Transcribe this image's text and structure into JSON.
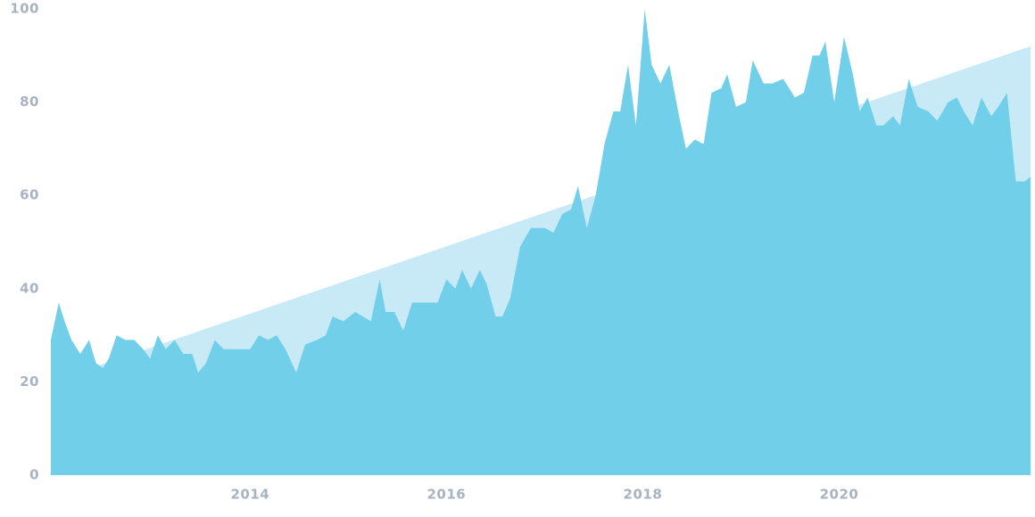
{
  "chart_data": {
    "type": "area",
    "xlim": [
      2011.97,
      2021.95
    ],
    "xticks": [
      2014,
      2016,
      2018,
      2020
    ],
    "ylim": [
      0,
      100
    ],
    "yticks": [
      0,
      20,
      40,
      60,
      80,
      100
    ],
    "grid": false,
    "series": [
      {
        "color": "#72cfea",
        "x": [
          2011.97,
          2012.05,
          2012.11,
          2012.18,
          2012.27,
          2012.36,
          2012.43,
          2012.5,
          2012.56,
          2012.64,
          2012.73,
          2012.82,
          2012.91,
          2012.98,
          2013.06,
          2013.14,
          2013.23,
          2013.32,
          2013.41,
          2013.47,
          2013.55,
          2013.64,
          2013.73,
          2013.86,
          2014.0,
          2014.09,
          2014.18,
          2014.27,
          2014.36,
          2014.47,
          2014.56,
          2014.68,
          2014.77,
          2014.84,
          2014.95,
          2015.07,
          2015.23,
          2015.32,
          2015.38,
          2015.47,
          2015.56,
          2015.65,
          2015.77,
          2015.91,
          2016.0,
          2016.09,
          2016.16,
          2016.25,
          2016.34,
          2016.41,
          2016.5,
          2016.57,
          2016.65,
          2016.75,
          2016.86,
          2017.0,
          2017.09,
          2017.18,
          2017.27,
          2017.34,
          2017.43,
          2017.52,
          2017.61,
          2017.7,
          2017.77,
          2017.85,
          2017.93,
          2018.02,
          2018.09,
          2018.18,
          2018.27,
          2018.36,
          2018.44,
          2018.53,
          2018.62,
          2018.7,
          2018.8,
          2018.86,
          2018.95,
          2019.05,
          2019.12,
          2019.23,
          2019.32,
          2019.43,
          2019.55,
          2019.64,
          2019.73,
          2019.8,
          2019.86,
          2019.95,
          2020.05,
          2020.14,
          2020.21,
          2020.29,
          2020.38,
          2020.45,
          2020.55,
          2020.62,
          2020.71,
          2020.8,
          2020.91,
          2021.0,
          2021.11,
          2021.2,
          2021.27,
          2021.36,
          2021.45,
          2021.55,
          2021.62,
          2021.71,
          2021.8,
          2021.89,
          2021.95
        ],
        "values": [
          29,
          37,
          33,
          29,
          26,
          29,
          24,
          23,
          25,
          30,
          29,
          29,
          27,
          25,
          30,
          27,
          29,
          26,
          26,
          22,
          24,
          29,
          27,
          27,
          27,
          30,
          29,
          30,
          27,
          22,
          28,
          29,
          30,
          34,
          33,
          35,
          33,
          42,
          35,
          35,
          31,
          37,
          37,
          37,
          42,
          40,
          44,
          40,
          44,
          41,
          34,
          34,
          38,
          49,
          53,
          53,
          52,
          56,
          57,
          62,
          53,
          60,
          71,
          78,
          78,
          88,
          75,
          100,
          88,
          84,
          88,
          78,
          70,
          72,
          71,
          82,
          83,
          86,
          79,
          80,
          89,
          84,
          84,
          85,
          81,
          82,
          90,
          90,
          93,
          80,
          94,
          86,
          78,
          81,
          75,
          75,
          77,
          75,
          85,
          79,
          78,
          76,
          80,
          81,
          78,
          75,
          81,
          77,
          79,
          82,
          63,
          63,
          64
        ]
      },
      {
        "color": "#c7eaf6",
        "x": [
          2011.97,
          2021.95
        ],
        "values": [
          20,
          92
        ]
      }
    ]
  }
}
